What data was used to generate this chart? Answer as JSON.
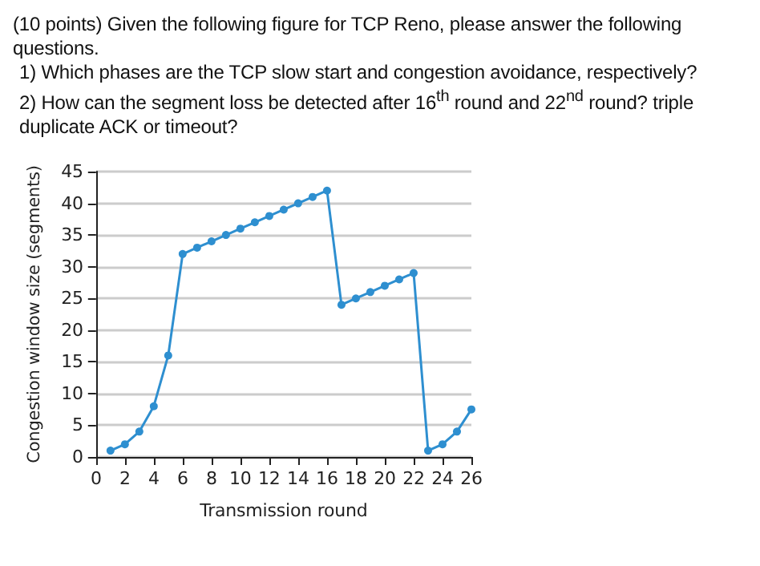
{
  "chart_data": {
    "type": "line",
    "title": "(10 points) Given the following figure for TCP Reno, please answer the following questions.",
    "annotations": [
      "1) Which phases are the TCP slow start and congestion avoidance, respectively?",
      "2) How can the segment loss be detected after 16$^{th}$ round and 22$^{nd}$ round? triple duplicate ACK or timeout?"
    ],
    "xlabel": "Transmission round",
    "ylabel": "Congestion window size (segments)",
    "x": [
      1,
      2,
      3,
      4,
      5,
      6,
      7,
      8,
      9,
      10,
      11,
      12,
      13,
      14,
      15,
      16,
      17,
      18,
      19,
      20,
      21,
      22,
      23,
      24,
      25,
      26
    ],
    "series": [
      {
        "color": "#2e8fd0",
        "values": [
          1,
          2,
          4,
          8,
          16,
          32,
          33,
          34,
          35,
          36,
          37,
          38,
          39,
          40,
          41,
          42,
          24,
          25,
          26,
          27,
          28,
          29,
          1,
          2,
          4,
          7.5
        ]
      }
    ],
    "xlim": [
      0,
      26
    ],
    "xticks": [
      0,
      2,
      4,
      6,
      8,
      10,
      12,
      14,
      16,
      18,
      20,
      22,
      24,
      26
    ],
    "ylim": [
      0,
      45
    ],
    "yticks": [
      0,
      5,
      10,
      15,
      20,
      25,
      30,
      35,
      40,
      45
    ],
    "grid": "y",
    "marker": "circle",
    "line_style": "solid"
  }
}
